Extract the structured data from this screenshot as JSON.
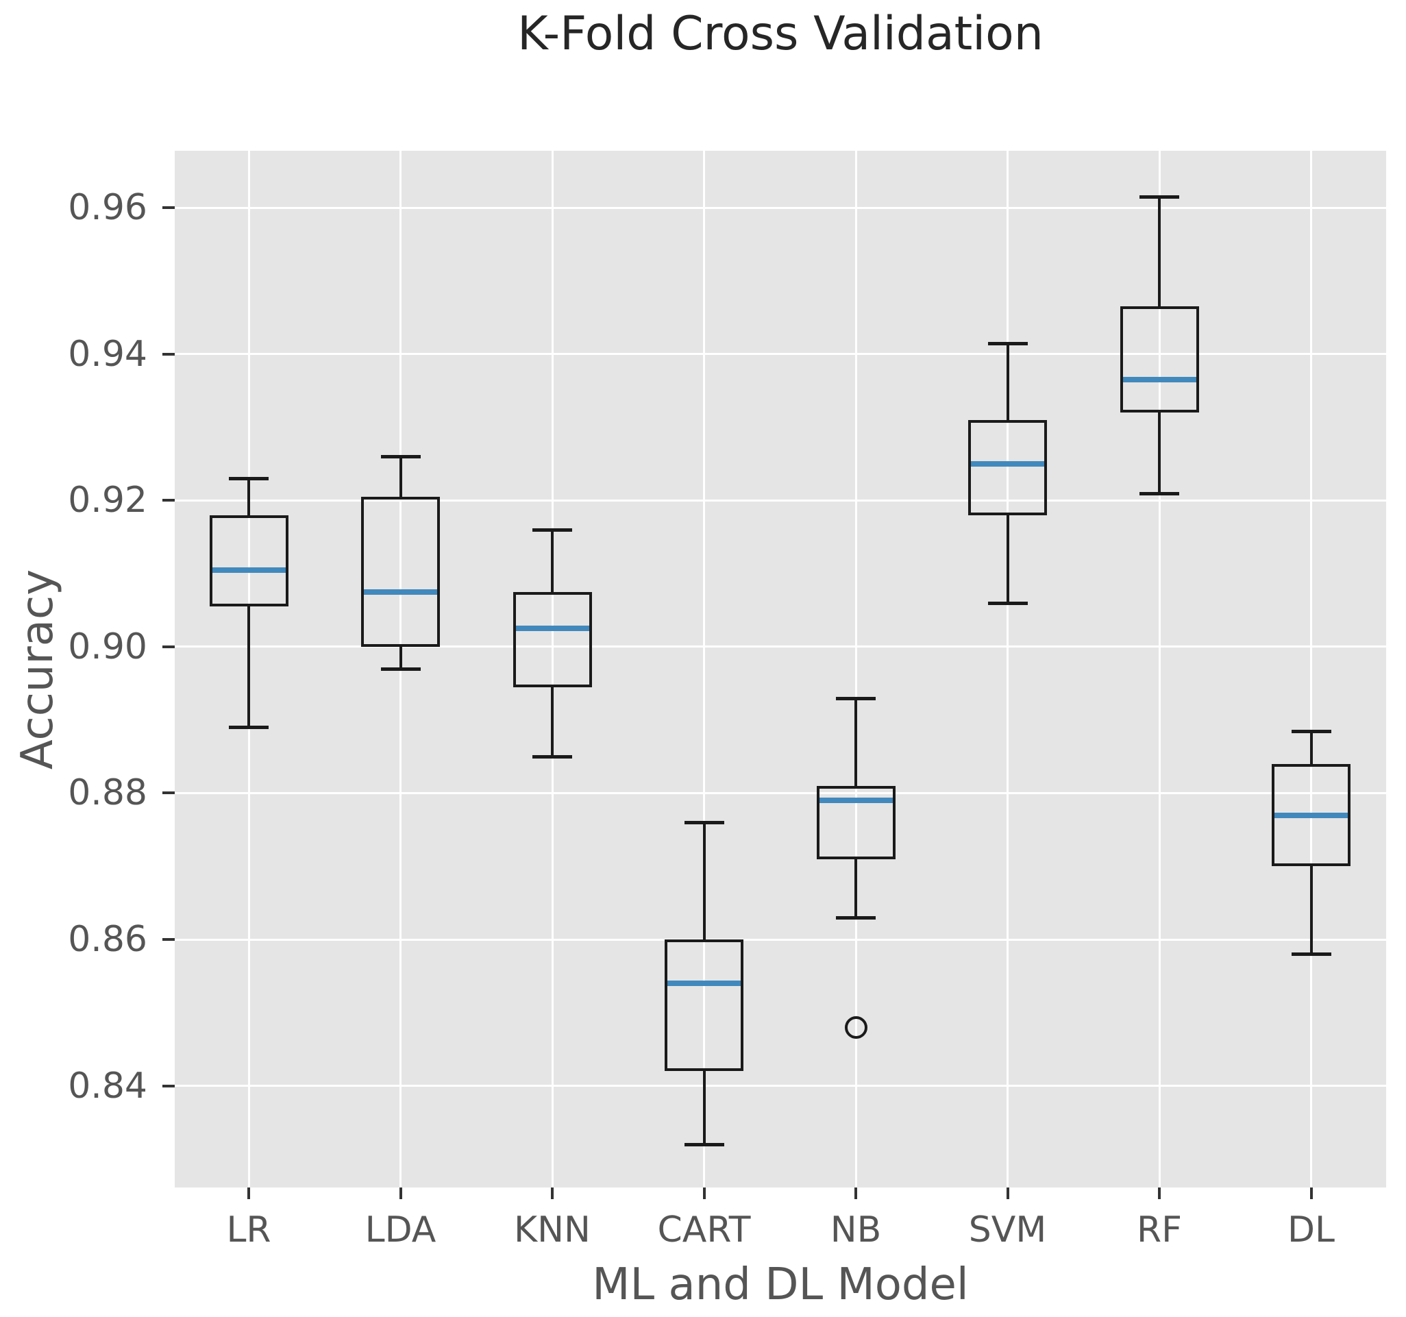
{
  "title": "K-Fold Cross Validation",
  "xlabel": "ML and DL Model",
  "ylabel": "Accuracy",
  "chart_data": {
    "type": "boxplot",
    "title": "K-Fold Cross Validation",
    "xlabel": "ML and DL Model",
    "ylabel": "Accuracy",
    "categories": [
      "LR",
      "LDA",
      "KNN",
      "CART",
      "NB",
      "SVM",
      "RF",
      "DL"
    ],
    "series": [
      {
        "name": "LR",
        "whisker_low": 0.889,
        "q1": 0.9055,
        "median": 0.9105,
        "q3": 0.918,
        "whisker_high": 0.923,
        "outliers": []
      },
      {
        "name": "LDA",
        "whisker_low": 0.897,
        "q1": 0.9,
        "median": 0.9075,
        "q3": 0.9205,
        "whisker_high": 0.926,
        "outliers": []
      },
      {
        "name": "KNN",
        "whisker_low": 0.885,
        "q1": 0.8945,
        "median": 0.9025,
        "q3": 0.9075,
        "whisker_high": 0.916,
        "outliers": []
      },
      {
        "name": "CART",
        "whisker_low": 0.832,
        "q1": 0.842,
        "median": 0.854,
        "q3": 0.86,
        "whisker_high": 0.876,
        "outliers": []
      },
      {
        "name": "NB",
        "whisker_low": 0.863,
        "q1": 0.871,
        "median": 0.879,
        "q3": 0.881,
        "whisker_high": 0.893,
        "outliers": [
          0.848
        ]
      },
      {
        "name": "SVM",
        "whisker_low": 0.906,
        "q1": 0.918,
        "median": 0.925,
        "q3": 0.931,
        "whisker_high": 0.9415,
        "outliers": []
      },
      {
        "name": "RF",
        "whisker_low": 0.921,
        "q1": 0.932,
        "median": 0.9365,
        "q3": 0.9465,
        "whisker_high": 0.9615,
        "outliers": []
      },
      {
        "name": "DL",
        "whisker_low": 0.858,
        "q1": 0.87,
        "median": 0.877,
        "q3": 0.884,
        "whisker_high": 0.8885,
        "outliers": []
      }
    ],
    "yticks": [
      0.84,
      0.86,
      0.88,
      0.9,
      0.92,
      0.94,
      0.96
    ],
    "ylim": [
      0.8261,
      0.9678
    ],
    "grid": true,
    "legend": "none",
    "colors": {
      "figure_bg": "#ffffff",
      "plot_bg": "#e5e5e5",
      "grid": "#ffffff",
      "box_line": "#1a1a1a",
      "median_line": "#4189bd",
      "title_text": "#262626",
      "label_text": "#555555",
      "tick_mark": "#333333"
    }
  }
}
